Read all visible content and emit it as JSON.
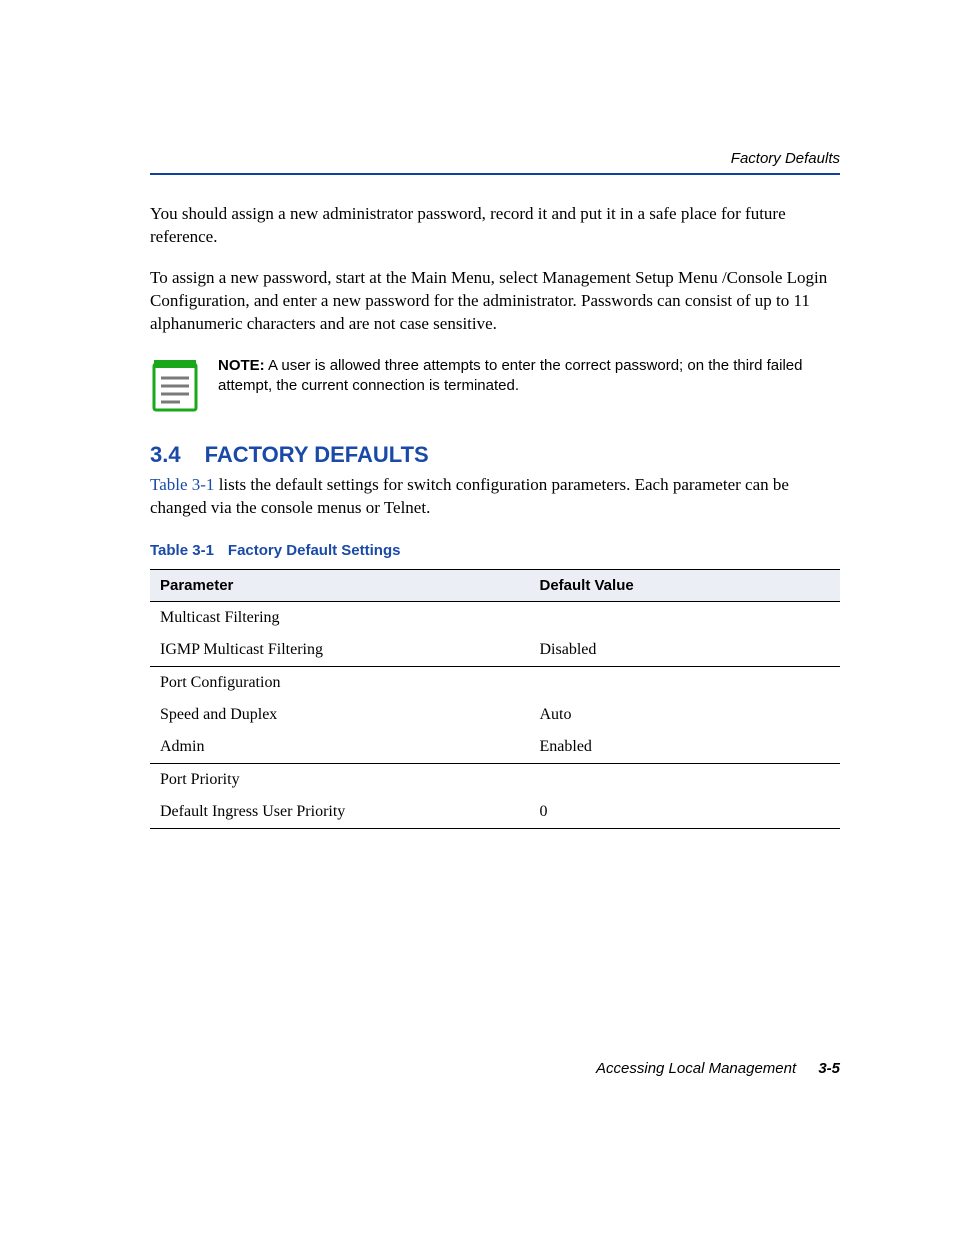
{
  "header": {
    "running_title": "Factory Defaults"
  },
  "paragraphs": {
    "p1": "You should assign a new administrator password, record it and put it in a safe place for future reference.",
    "p2": "To assign a new password, start at the Main Menu, select Management Setup Menu /Console Login Configuration, and enter a new password for the administrator. Passwords can consist of up to 11 alphanumeric characters and are not case sensitive."
  },
  "note": {
    "label": "NOTE:",
    "text": "A user is allowed three attempts to enter the correct password; on the third failed attempt, the current connection is terminated.",
    "icon": {
      "outline_color": "#1aa81a",
      "binding_color": "#1aa81a",
      "line_color": "#888888",
      "page_color": "#ffffff"
    }
  },
  "section": {
    "number": "3.4",
    "title": "FACTORY DEFAULTS",
    "intro_pre": "",
    "xref": "Table 3-1",
    "intro_post": " lists the default settings for switch configuration parameters. Each parameter can be changed via the console menus or Telnet."
  },
  "table": {
    "caption_number": "Table 3-1",
    "caption_title": "Factory Default Settings",
    "columns": [
      "Parameter",
      "Default Value"
    ],
    "rows": [
      {
        "type": "group",
        "param": "Multicast Filtering",
        "value": ""
      },
      {
        "type": "sub",
        "param": "IGMP Multicast Filtering",
        "value": "Disabled"
      },
      {
        "type": "group",
        "param": "Port Configuration",
        "value": ""
      },
      {
        "type": "sub",
        "param": "Speed and Duplex",
        "value": "Auto"
      },
      {
        "type": "sub",
        "param": "Admin",
        "value": "Enabled"
      },
      {
        "type": "group",
        "param": "Port Priority",
        "value": ""
      },
      {
        "type": "sub",
        "param": "Default Ingress User Priority",
        "value": "0",
        "last": true
      }
    ]
  },
  "footer": {
    "title": "Accessing Local Management",
    "page": "3-5"
  },
  "colors": {
    "accent": "#1a4aa8",
    "rule": "#1040a0",
    "header_bg": "#eceef6"
  }
}
